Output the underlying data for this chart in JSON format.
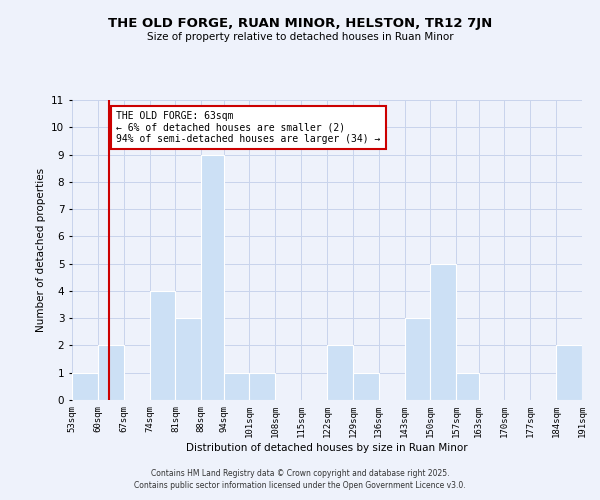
{
  "title": "THE OLD FORGE, RUAN MINOR, HELSTON, TR12 7JN",
  "subtitle": "Size of property relative to detached houses in Ruan Minor",
  "xlabel": "Distribution of detached houses by size in Ruan Minor",
  "ylabel": "Number of detached properties",
  "bins": [
    53,
    60,
    67,
    74,
    81,
    88,
    94,
    101,
    108,
    115,
    122,
    129,
    136,
    143,
    150,
    157,
    163,
    170,
    177,
    184,
    191
  ],
  "counts": [
    1,
    2,
    0,
    4,
    3,
    9,
    1,
    1,
    0,
    0,
    2,
    1,
    0,
    3,
    5,
    1,
    0,
    0,
    0,
    2
  ],
  "bar_color": "#cce0f5",
  "bar_edge_color": "#ffffff",
  "property_line_x": 63,
  "property_line_color": "#cc0000",
  "annotation_text": "THE OLD FORGE: 63sqm\n← 6% of detached houses are smaller (2)\n94% of semi-detached houses are larger (34) →",
  "annotation_box_color": "#ffffff",
  "annotation_box_edge": "#cc0000",
  "ylim": [
    0,
    11
  ],
  "yticks": [
    0,
    1,
    2,
    3,
    4,
    5,
    6,
    7,
    8,
    9,
    10,
    11
  ],
  "tick_labels": [
    "53sqm",
    "60sqm",
    "67sqm",
    "74sqm",
    "81sqm",
    "88sqm",
    "94sqm",
    "101sqm",
    "108sqm",
    "115sqm",
    "122sqm",
    "129sqm",
    "136sqm",
    "143sqm",
    "150sqm",
    "157sqm",
    "163sqm",
    "170sqm",
    "177sqm",
    "184sqm",
    "191sqm"
  ],
  "footer": "Contains HM Land Registry data © Crown copyright and database right 2025.\nContains public sector information licensed under the Open Government Licence v3.0.",
  "background_color": "#eef2fb",
  "grid_color": "#c8d4ec"
}
